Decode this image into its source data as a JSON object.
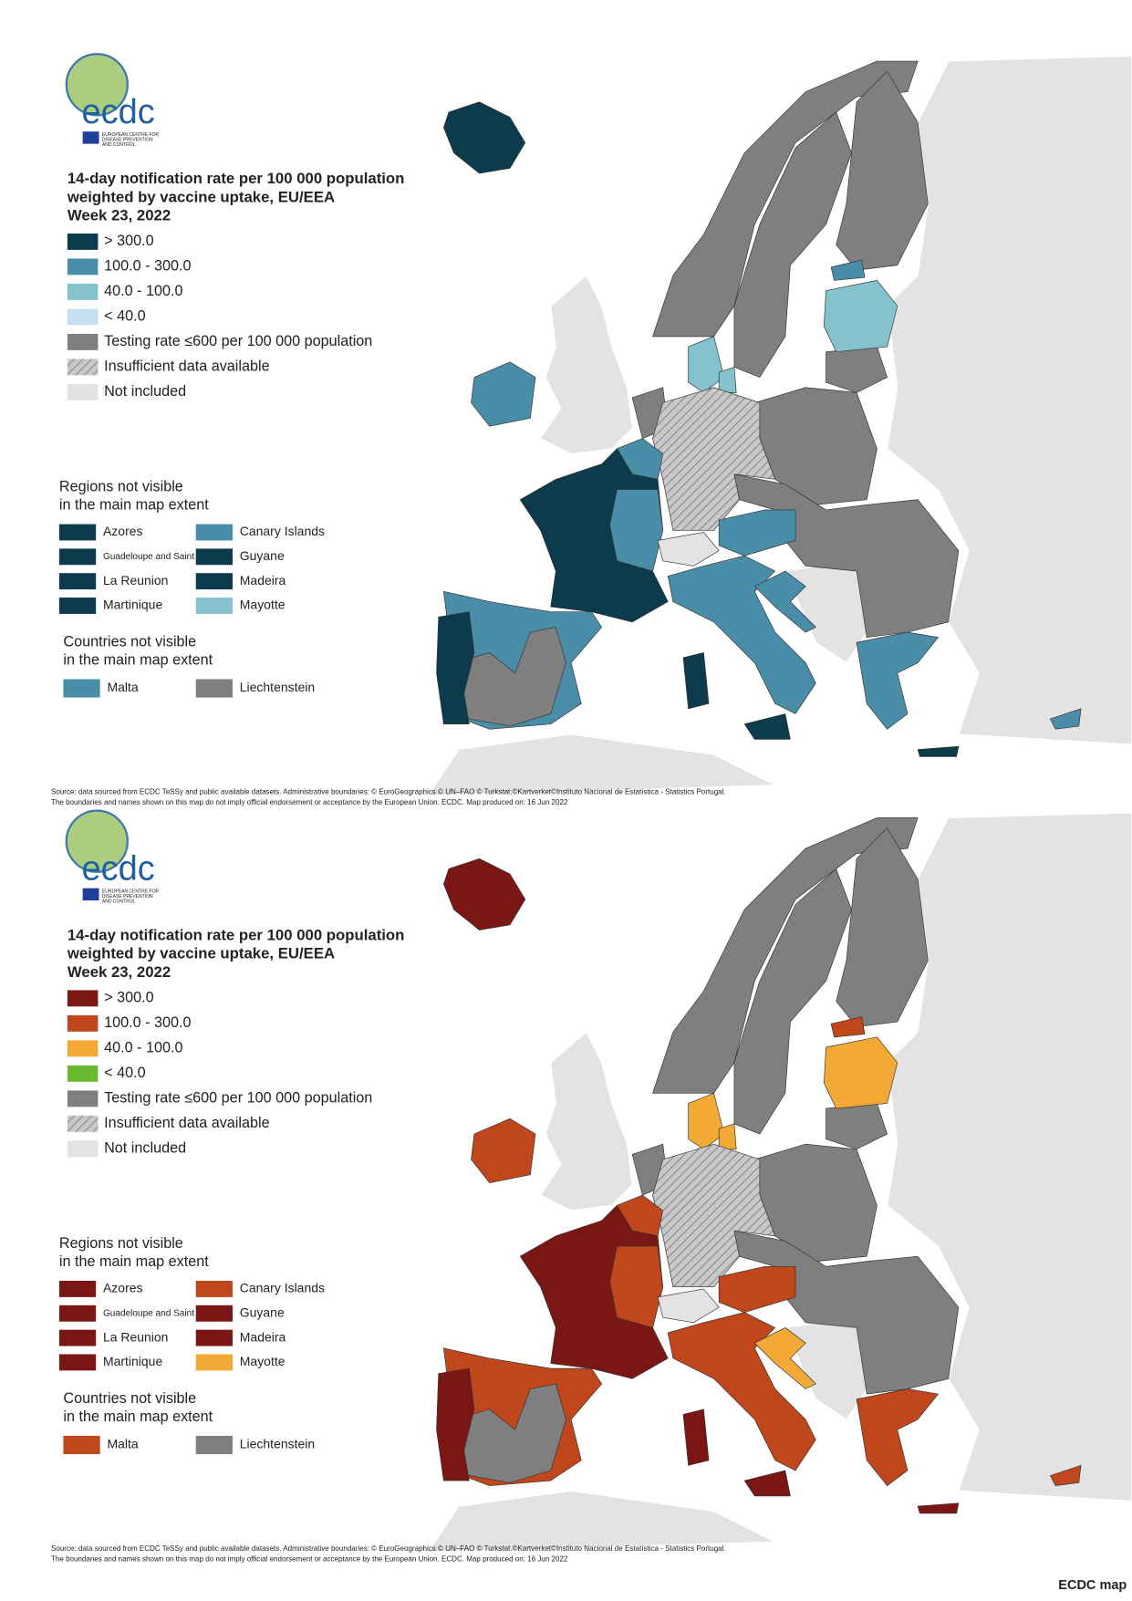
{
  "maps": [
    {
      "logo": {
        "text": "ecdc",
        "caption": [
          "EUROPEAN CENTRE FOR",
          "DISEASE PREVENTION",
          "AND CONTROL"
        ]
      },
      "title": [
        "14-day notification rate per 100 000 population",
        "weighted by vaccine uptake, EU/EEA",
        "Week 23, 2022"
      ],
      "legend": [
        {
          "label": "> 300.0",
          "color": "#0c3b4e"
        },
        {
          "label": "100.0 - 300.0",
          "color": "#4a8da8"
        },
        {
          "label": "40.0 - 100.0",
          "color": "#84c3cd"
        },
        {
          "label": "< 40.0",
          "color": "#c6e0ef"
        },
        {
          "label": "Testing rate ≤600 per 100 000 population",
          "color": "#7f7f7f"
        },
        {
          "label": "Insufficient data available",
          "color": "#bdbdbd",
          "hatched": true
        },
        {
          "label": "Not included",
          "color": "#e3e3e3"
        }
      ],
      "regions_heading": [
        "Regions not visible",
        "in the main map extent"
      ],
      "regions": [
        {
          "label": "Azores",
          "color": "#0c3b4e"
        },
        {
          "label": "Guadeloupe and Saint Martin",
          "color": "#0c3b4e"
        },
        {
          "label": "La Reunion",
          "color": "#0c3b4e"
        },
        {
          "label": "Martinique",
          "color": "#0c3b4e"
        },
        {
          "label": "Canary Islands",
          "color": "#4a8da8"
        },
        {
          "label": "Guyane",
          "color": "#0c3b4e"
        },
        {
          "label": "Madeira",
          "color": "#0c3b4e"
        },
        {
          "label": "Mayotte",
          "color": "#84c3cd"
        }
      ],
      "countries_heading": [
        "Countries not visible",
        "in the main map extent"
      ],
      "countries": [
        {
          "label": "Malta",
          "color": "#4a8da8"
        },
        {
          "label": "Liechtenstein",
          "color": "#7f7f7f"
        }
      ],
      "source": [
        "Source: data sourced from ECDC TeSSy and public available datasets. Administrative boundaries: © EuroGeographics © UN–FAO © Turkstat.©Kartverket©Instituto Nacional de Estatística - Statistics Portugal.",
        "The boundaries and names shown on this map do not imply official endorsement or acceptance by the European Union. ECDC. Map produced on: 16 Jun 2022"
      ]
    },
    {
      "logo": {
        "text": "ecdc",
        "caption": [
          "EUROPEAN CENTRE FOR",
          "DISEASE PREVENTION",
          "AND CONTROL"
        ]
      },
      "title": [
        "14-day notification rate per 100 000 population",
        "weighted by vaccine uptake, EU/EEA",
        "Week 23, 2022"
      ],
      "legend": [
        {
          "label": "> 300.0",
          "color": "#7a1614"
        },
        {
          "label": "100.0 - 300.0",
          "color": "#c0461c"
        },
        {
          "label": "40.0 - 100.0",
          "color": "#f3a935"
        },
        {
          "label": "< 40.0",
          "color": "#6ab831"
        },
        {
          "label": "Testing rate ≤600 per 100 000 population",
          "color": "#7f7f7f"
        },
        {
          "label": "Insufficient data available",
          "color": "#bdbdbd",
          "hatched": true
        },
        {
          "label": "Not included",
          "color": "#e3e3e3"
        }
      ],
      "regions_heading": [
        "Regions not visible",
        "in the main map extent"
      ],
      "regions": [
        {
          "label": "Azores",
          "color": "#7a1614"
        },
        {
          "label": "Guadeloupe and Saint Martin",
          "color": "#7a1614"
        },
        {
          "label": "La Reunion",
          "color": "#7a1614"
        },
        {
          "label": "Martinique",
          "color": "#7a1614"
        },
        {
          "label": "Canary Islands",
          "color": "#c0461c"
        },
        {
          "label": "Guyane",
          "color": "#7a1614"
        },
        {
          "label": "Madeira",
          "color": "#7a1614"
        },
        {
          "label": "Mayotte",
          "color": "#f3a935"
        }
      ],
      "countries_heading": [
        "Countries not visible",
        "in the main map extent"
      ],
      "countries": [
        {
          "label": "Malta",
          "color": "#c0461c"
        },
        {
          "label": "Liechtenstein",
          "color": "#7f7f7f"
        }
      ],
      "source": [
        "Source: data sourced from ECDC TeSSy and public available datasets. Administrative boundaries: © EuroGeographics © UN–FAO © Turkstat.©Kartverket©Instituto Nacional de Estatística - Statistics Portugal.",
        "The boundaries and names shown on this map do not imply official endorsement or acceptance by the European Union. ECDC. Map produced on: 16 Jun 2022"
      ]
    }
  ],
  "footer": "ECDC map"
}
